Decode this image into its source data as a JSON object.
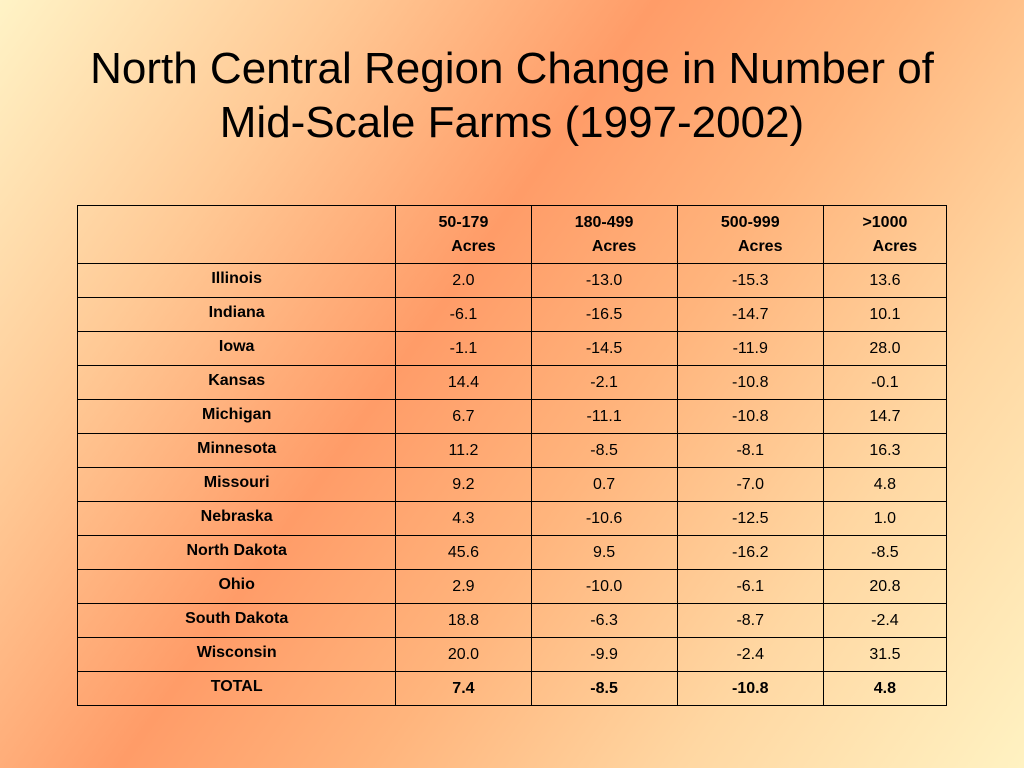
{
  "title": {
    "line1": "North Central Region Change in Number of",
    "line2": "Mid-Scale Farms (1997-2002)"
  },
  "table": {
    "columns": [
      {
        "line1": "50-179",
        "line2": "Acres"
      },
      {
        "line1": "180-499",
        "line2": "Acres"
      },
      {
        "line1": "500-999",
        "line2": "Acres"
      },
      {
        "line1": ">1000",
        "line2": "Acres"
      }
    ],
    "rows": [
      {
        "state": "Illinois",
        "values": [
          "2.0",
          "-13.0",
          "-15.3",
          "13.6"
        ]
      },
      {
        "state": "Indiana",
        "values": [
          "-6.1",
          "-16.5",
          "-14.7",
          "10.1"
        ]
      },
      {
        "state": "Iowa",
        "values": [
          "-1.1",
          "-14.5",
          "-11.9",
          "28.0"
        ]
      },
      {
        "state": "Kansas",
        "values": [
          "14.4",
          "-2.1",
          "-10.8",
          "-0.1"
        ]
      },
      {
        "state": "Michigan",
        "values": [
          "6.7",
          "-11.1",
          "-10.8",
          "14.7"
        ]
      },
      {
        "state": "Minnesota",
        "values": [
          "11.2",
          "-8.5",
          "-8.1",
          "16.3"
        ]
      },
      {
        "state": "Missouri",
        "values": [
          "9.2",
          "0.7",
          "-7.0",
          "4.8"
        ]
      },
      {
        "state": "Nebraska",
        "values": [
          "4.3",
          "-10.6",
          "-12.5",
          "1.0"
        ]
      },
      {
        "state": "North Dakota",
        "values": [
          "45.6",
          "9.5",
          "-16.2",
          "-8.5"
        ]
      },
      {
        "state": "Ohio",
        "values": [
          "2.9",
          "-10.0",
          "-6.1",
          "20.8"
        ]
      },
      {
        "state": "South Dakota",
        "values": [
          "18.8",
          "-6.3",
          "-8.7",
          "-2.4"
        ]
      },
      {
        "state": "Wisconsin",
        "values": [
          "20.0",
          "-9.9",
          "-2.4",
          "31.5"
        ]
      },
      {
        "state": "TOTAL",
        "values": [
          "7.4",
          "-8.5",
          "-10.8",
          "4.8"
        ]
      }
    ]
  }
}
